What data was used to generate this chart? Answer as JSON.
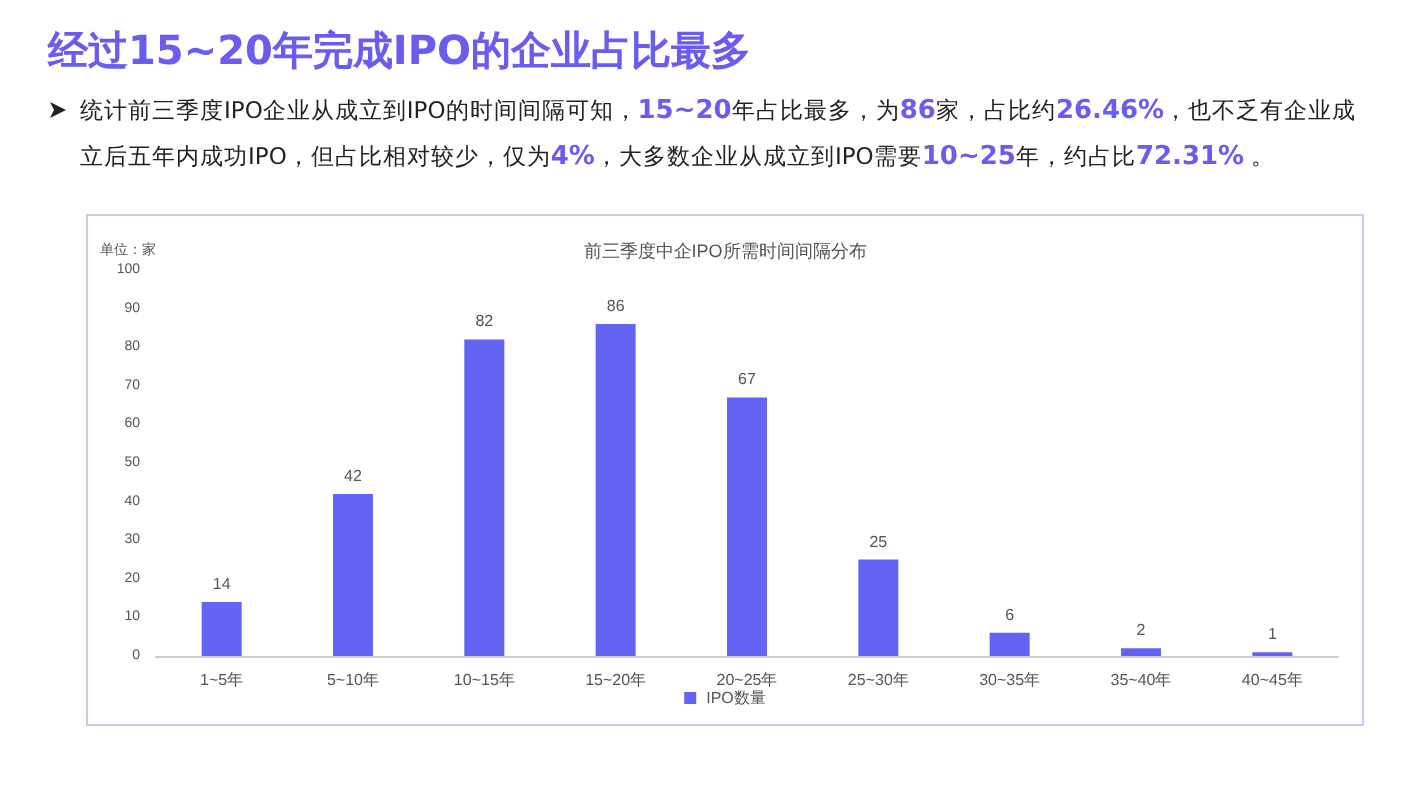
{
  "chart_data": {
    "type": "bar",
    "title": "经过15~20年完成IPO的企业占比最多",
    "subtitle": "前三季度中企IPO所需时间间隔分布",
    "annotations": [
      "统计前三季度IPO企业从成立到IPO的时间间隔可知，15~20年占比最多，为86家，占比约26.46%，也不乏有企业成立后五年内成功IPO，但占比相对较少，仅为4%，大多数企业从成立到IPO需要10~25年，约占比72.31% 。"
    ],
    "ylabel": "单位：家",
    "categories": [
      "1~5年",
      "5~10年",
      "10~15年",
      "15~20年",
      "20~25年",
      "25~30年",
      "30~35年",
      "35~40年",
      "40~45年"
    ],
    "series": [
      {
        "name": "IPO数量",
        "color": "#6464f4",
        "values": [
          14,
          42,
          82,
          86,
          67,
          25,
          6,
          2,
          1
        ]
      }
    ],
    "ylim": [
      0,
      100
    ],
    "yticks": [
      0,
      10,
      20,
      30,
      40,
      50,
      60,
      70,
      80,
      90,
      100
    ],
    "grid": false,
    "legend": "bottom",
    "data_labels": true
  }
}
